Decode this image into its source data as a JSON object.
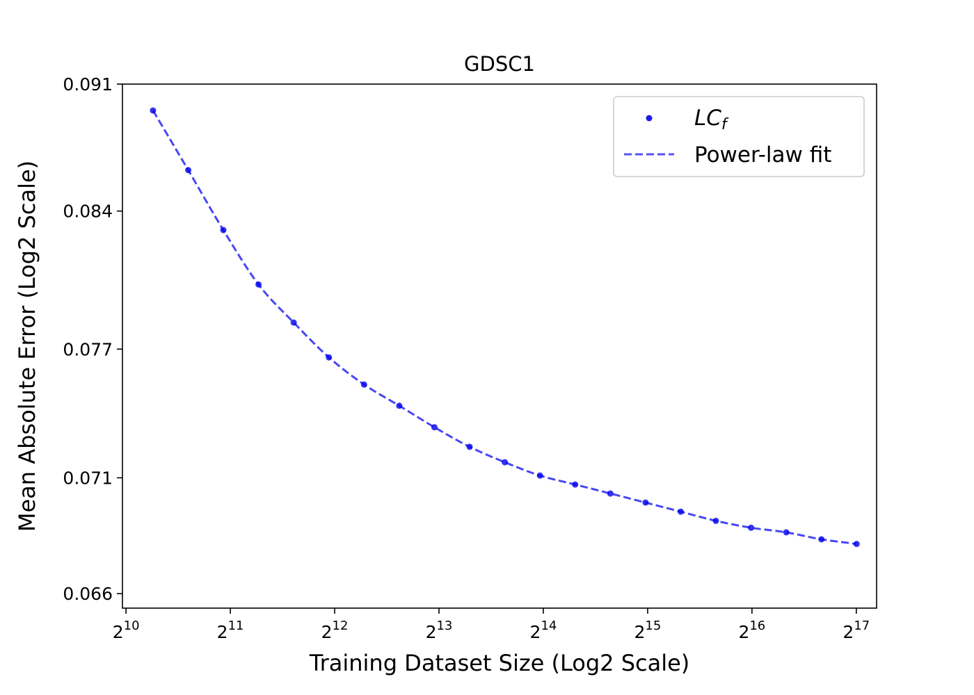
{
  "chart_data": {
    "type": "line",
    "title": "GDSC1",
    "xlabel": "Training Dataset Size (Log2 Scale)",
    "ylabel": "Mean Absolute Error (Log2 Scale)",
    "x_scale": "log2",
    "y_scale": "log2",
    "xlim": [
      1000,
      150000
    ],
    "ylim": [
      0.0654,
      0.091
    ],
    "x_ticks": [
      {
        "base": "2",
        "exp": "10",
        "value": 1024
      },
      {
        "base": "2",
        "exp": "11",
        "value": 2048
      },
      {
        "base": "2",
        "exp": "12",
        "value": 4096
      },
      {
        "base": "2",
        "exp": "13",
        "value": 8192
      },
      {
        "base": "2",
        "exp": "14",
        "value": 16384
      },
      {
        "base": "2",
        "exp": "15",
        "value": 32768
      },
      {
        "base": "2",
        "exp": "16",
        "value": 65536
      },
      {
        "base": "2",
        "exp": "17",
        "value": 131072
      }
    ],
    "y_ticks": [
      {
        "label": "0.066",
        "value": 0.066
      },
      {
        "label": "0.071",
        "value": 0.071
      },
      {
        "label": "0.077",
        "value": 0.077
      },
      {
        "label": "0.084",
        "value": 0.084
      },
      {
        "label": "0.091",
        "value": 0.091
      }
    ],
    "grid": false,
    "legend_position": "top-right",
    "legend": {
      "points_label_main": "LC",
      "points_label_sub": "f",
      "fit_label": "Power-law fit"
    },
    "series": [
      {
        "kind": "points",
        "color": "#0000ee",
        "x": [
          1225,
          1548,
          1955,
          2470,
          3120,
          3942,
          4980,
          6291,
          7947,
          10040,
          12684,
          16025,
          20245,
          25576,
          32311,
          40820,
          51569,
          65149,
          82305,
          103980,
          131360
        ],
        "y": [
          0.0895,
          0.0862,
          0.083,
          0.0802,
          0.0783,
          0.0766,
          0.0753,
          0.0743,
          0.0733,
          0.0724,
          0.0717,
          0.0711,
          0.0707,
          0.0703,
          0.0699,
          0.0695,
          0.0691,
          0.0688,
          0.0686,
          0.0683,
          0.0681
        ]
      },
      {
        "kind": "fit",
        "color": "#0000ee",
        "dash": true
      }
    ]
  }
}
